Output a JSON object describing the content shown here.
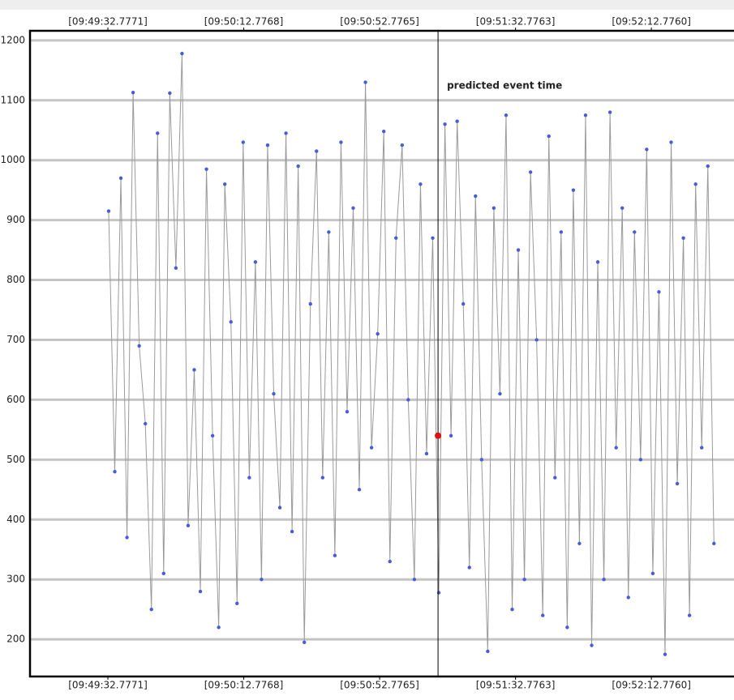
{
  "chart_data": {
    "type": "scatter",
    "x": [
      33,
      34.8,
      36.6,
      38.4,
      40.2,
      42,
      43.8,
      45.6,
      47.4,
      49.2,
      51,
      52.8,
      54.6,
      56.4,
      58.2,
      60,
      61.8,
      63.6,
      65.4,
      67.2,
      69,
      70.8,
      72.6,
      74.4,
      76.2,
      78,
      79.8,
      81.6,
      83.4,
      85.2,
      87,
      88.8,
      90.6,
      92.4,
      94.2,
      96,
      97.8,
      99.6,
      101.4,
      103.2,
      105,
      106.8,
      108.6,
      110.4,
      112.2,
      114,
      115.8,
      117.6,
      119.4,
      121.2,
      123,
      124.8,
      126.6,
      128.4,
      130.2,
      132,
      133.8,
      135.6,
      137.4,
      139.2,
      141,
      142.8,
      144.6,
      146.4,
      148.2,
      150,
      151.8,
      153.6,
      155.4,
      157.2,
      159,
      160.8,
      162.6,
      164.4,
      166.2,
      168,
      169.8,
      171.6,
      173.4,
      175.2,
      177,
      178.8,
      180.6,
      182.4,
      184.2,
      186,
      187.8,
      189.6,
      191.4,
      193.2,
      195,
      196.8,
      198.6,
      200.4,
      202.2,
      204,
      205.8,
      207.6,
      209.4,
      211.2
    ],
    "series": [
      {
        "color": "#4a5bd8",
        "line_color": "#9a9a9a",
        "values": [
          915,
          480,
          970,
          370,
          1113,
          690,
          560,
          250,
          1045,
          310,
          1112,
          820,
          1178,
          390,
          650,
          280,
          985,
          540,
          220,
          960,
          730,
          260,
          1030,
          470,
          830,
          300,
          1025,
          610,
          420,
          1045,
          380,
          990,
          195,
          760,
          1015,
          470,
          880,
          340,
          1030,
          580,
          920,
          450,
          1130,
          520,
          710,
          1048,
          330,
          870,
          1025,
          600,
          300,
          960,
          510,
          870,
          278,
          1060,
          540,
          1065,
          760,
          320,
          940,
          500,
          180,
          920,
          610,
          1075,
          250,
          850,
          300,
          980,
          700,
          240,
          1040,
          470,
          880,
          220,
          950,
          360,
          1075,
          190,
          830,
          300,
          1080,
          520,
          920,
          270,
          880,
          500,
          1018,
          310,
          780,
          175,
          1030,
          460,
          870,
          240,
          960,
          520,
          990,
          360
        ]
      }
    ],
    "highlight": {
      "x": 129.97,
      "y": 540,
      "color": "#e01010"
    },
    "event_line": {
      "x": 129.97,
      "label": "predicted event time"
    },
    "xlim": [
      9.85,
      217.1
    ],
    "xticks": [
      {
        "value": 32.7771,
        "label": "[09:49:32.7771]"
      },
      {
        "value": 72.7768,
        "label": "[09:50:12.7768]"
      },
      {
        "value": 112.7765,
        "label": "[09:50:52.7765]"
      },
      {
        "value": 152.7763,
        "label": "[09:51:32.7763]"
      },
      {
        "value": 192.776,
        "label": "[09:52:12.7760]"
      }
    ],
    "ylim": [
      138,
      1216
    ],
    "yticks": [
      200,
      300,
      400,
      500,
      600,
      700,
      800,
      900,
      1000,
      1100,
      1200
    ],
    "grid": true,
    "grid_color": "#c4c4c4"
  }
}
